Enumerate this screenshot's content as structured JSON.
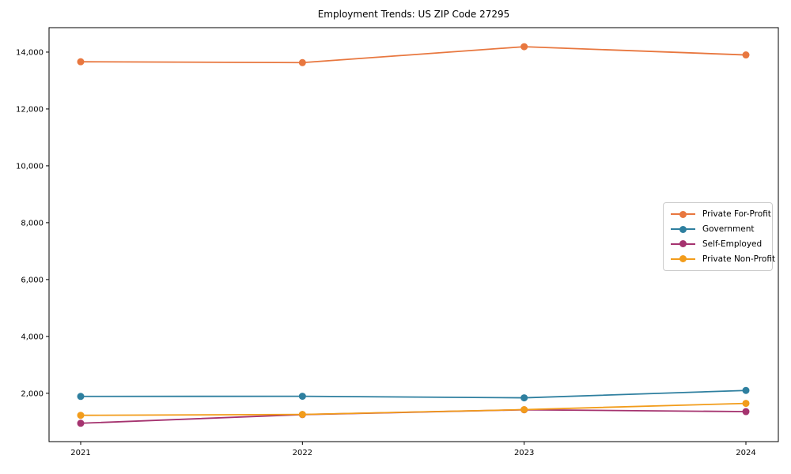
{
  "chart_data": {
    "type": "line",
    "title": "Employment Trends: US ZIP Code 27295",
    "categories": [
      "2021",
      "2022",
      "2023",
      "2024"
    ],
    "series": [
      {
        "name": "Private For-Profit",
        "color": "#e8773f",
        "values": [
          13660,
          13630,
          14190,
          13900
        ]
      },
      {
        "name": "Government",
        "color": "#2e7f9f",
        "values": [
          1890,
          1895,
          1840,
          2100
        ]
      },
      {
        "name": "Self-Employed",
        "color": "#a5336f",
        "values": [
          945,
          1250,
          1420,
          1355
        ]
      },
      {
        "name": "Private Non-Profit",
        "color": "#f29c1b",
        "values": [
          1225,
          1255,
          1425,
          1645
        ]
      }
    ],
    "xlabel": "",
    "ylabel": "",
    "ylim": [
      300,
      14860
    ],
    "yticks": [
      2000,
      4000,
      6000,
      8000,
      10000,
      12000,
      14000
    ],
    "ytick_labels": [
      "2,000",
      "4,000",
      "6,000",
      "8,000",
      "10,000",
      "12,000",
      "14,000"
    ],
    "grid": false,
    "legend_position": "right-middle"
  },
  "colors": {
    "axis": "#000000",
    "tick_text": "#000000",
    "legend_border": "#cccccc",
    "background": "#ffffff"
  }
}
